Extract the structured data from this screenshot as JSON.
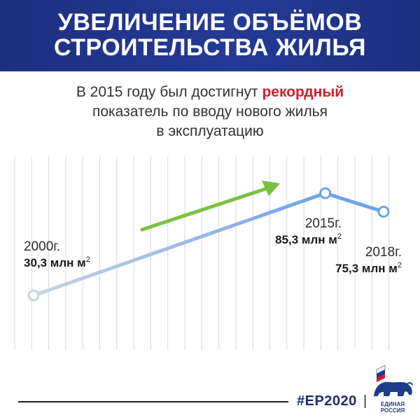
{
  "header": {
    "title_line1": "УВЕЛИЧЕНИЕ ОБЪЁМОВ",
    "title_line2": "СТРОИТЕЛЬСТВА ЖИЛЬЯ"
  },
  "subtitle": {
    "line1_before": "В 2015 году был достигнут ",
    "line1_accent": "рекордный",
    "line2": "показатель по вводу нового жилья",
    "line3": "в эксплуатацию"
  },
  "chart_data": {
    "type": "line",
    "x": [
      2000,
      2015,
      2018
    ],
    "series": [
      {
        "values": [
          30.3,
          85.3,
          75.3
        ]
      }
    ],
    "labels": [
      {
        "year": "2000г.",
        "value": "30,3 млн м",
        "sup": "2"
      },
      {
        "year": "2015г.",
        "value": "85,3 млн м",
        "sup": "2"
      },
      {
        "year": "2018г.",
        "value": "75,3 млн м",
        "sup": "2"
      }
    ],
    "title": "",
    "xlabel": "",
    "ylabel": "",
    "grid": "vertical",
    "trend_arrow": "up"
  },
  "footer": {
    "hashtag": "#ЕР2020",
    "separator": "|",
    "logo_line1": "ЕДИНАЯ",
    "logo_line2": "РОССИЯ"
  },
  "colors": {
    "banner": "#1d2f80",
    "accent_red": "#e0192b",
    "line_blue": "#6fa3e6",
    "line_start": "#c9d3df",
    "arrow_green": "#79c141",
    "grid": "#d8d8d8"
  }
}
